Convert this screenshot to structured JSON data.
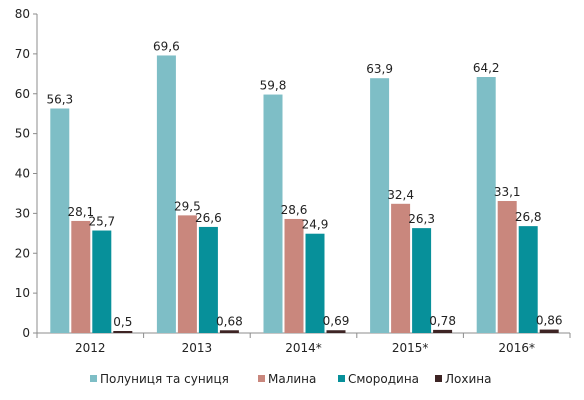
{
  "chart_data": {
    "type": "bar",
    "categories": [
      "2012",
      "2013",
      "2014*",
      "2015*",
      "2016*"
    ],
    "series": [
      {
        "name": "Полуниця та суниця",
        "color": "#7ebec6",
        "values": [
          56.3,
          69.6,
          59.8,
          63.9,
          64.2
        ],
        "labels": [
          "56,3",
          "69,6",
          "59,8",
          "63,9",
          "64,2"
        ]
      },
      {
        "name": "Малина",
        "color": "#c9877d",
        "values": [
          28.1,
          29.5,
          28.6,
          32.4,
          33.1
        ],
        "labels": [
          "28,1",
          "29,5",
          "28,6",
          "32,4",
          "33,1"
        ]
      },
      {
        "name": "Смородина",
        "color": "#07909a",
        "values": [
          25.7,
          26.6,
          24.9,
          26.3,
          26.8
        ],
        "labels": [
          "25,7",
          "26,6",
          "24,9",
          "26,3",
          "26,8"
        ]
      },
      {
        "name": "Лохина",
        "color": "#3d2424",
        "values": [
          0.5,
          0.68,
          0.69,
          0.78,
          0.86
        ],
        "labels": [
          "0,5",
          "0,68",
          "0,69",
          "0,78",
          "0,86"
        ]
      }
    ],
    "yticks": [
      0,
      10,
      20,
      30,
      40,
      50,
      60,
      70,
      80
    ],
    "ylim": [
      0,
      80
    ],
    "grid": false,
    "legend": "bottom"
  }
}
